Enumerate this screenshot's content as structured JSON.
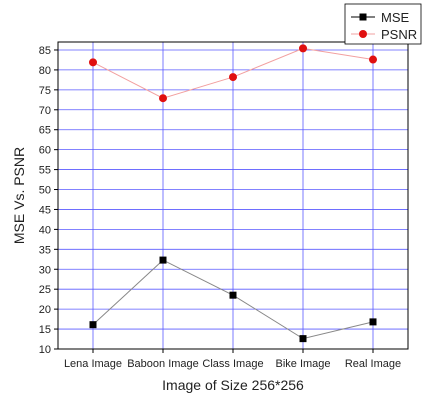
{
  "chart_data": {
    "type": "line",
    "title": "",
    "xlabel": "Image of Size 256*256",
    "ylabel": "MSE Vs. PSNR",
    "categories": [
      "Lena Image",
      "Baboon Image",
      "Class Image",
      "Bike Image",
      "Real Image"
    ],
    "ylim": [
      10,
      87
    ],
    "yticks": [
      10,
      15,
      20,
      25,
      30,
      35,
      40,
      45,
      50,
      55,
      60,
      65,
      70,
      75,
      80,
      85
    ],
    "grid": true,
    "legend_position": "top-right",
    "series": [
      {
        "name": "MSE",
        "values": [
          16.1,
          32.3,
          23.5,
          12.6,
          16.8
        ],
        "color": "#000000",
        "line_color": "#888888",
        "marker": "square"
      },
      {
        "name": "PSNR",
        "values": [
          81.9,
          72.9,
          78.2,
          85.4,
          82.6
        ],
        "color": "#e01010",
        "line_color": "#f2a0a0",
        "marker": "circle"
      }
    ],
    "grid_color": "#5a5aff"
  }
}
